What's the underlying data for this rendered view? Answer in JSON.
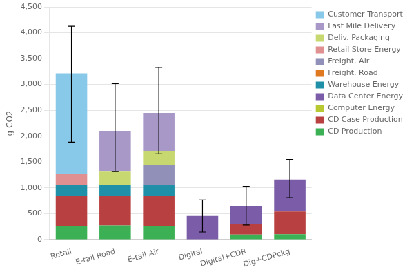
{
  "chart_data": {
    "type": "bar",
    "stacked": true,
    "categories": [
      "Retail",
      "E-tail Road",
      "E-tail Air",
      "Digital",
      "Digital+CDR",
      "Dig+CDPckg"
    ],
    "series": [
      {
        "name": "CD Production",
        "color": "#3cb054",
        "values": [
          250,
          270,
          250,
          0,
          95,
          100
        ]
      },
      {
        "name": "CD Case Production",
        "color": "#b94040",
        "values": [
          590,
          570,
          600,
          0,
          195,
          440
        ]
      },
      {
        "name": "Computer Energy",
        "color": "#b8c830",
        "values": [
          0,
          0,
          0,
          0,
          0,
          0
        ]
      },
      {
        "name": "Data Center Energy",
        "color": "#7b5ca8",
        "values": [
          0,
          0,
          0,
          455,
          360,
          620
        ]
      },
      {
        "name": "Warehouse Energy",
        "color": "#2090a8",
        "values": [
          215,
          210,
          215,
          0,
          0,
          0
        ]
      },
      {
        "name": "Freight, Road",
        "color": "#e07820",
        "values": [
          0,
          0,
          0,
          0,
          0,
          0
        ]
      },
      {
        "name": "Freight, Air",
        "color": "#9090b8",
        "values": [
          0,
          0,
          380,
          0,
          0,
          0
        ]
      },
      {
        "name": "Retail Store Energy",
        "color": "#e09090",
        "values": [
          210,
          0,
          0,
          0,
          0,
          0
        ]
      },
      {
        "name": "Deliv. Packaging",
        "color": "#c8d870",
        "values": [
          0,
          265,
          260,
          0,
          0,
          0
        ]
      },
      {
        "name": "Last Mile Delivery",
        "color": "#a898c8",
        "values": [
          0,
          780,
          745,
          0,
          0,
          0
        ]
      },
      {
        "name": "Customer Transport",
        "color": "#88c8e8",
        "values": [
          1950,
          0,
          0,
          0,
          0,
          0
        ]
      }
    ],
    "error_bars": [
      {
        "total": 3215,
        "yerr_low": 1330,
        "yerr_high": 910
      },
      {
        "total": 2095,
        "yerr_low": 780,
        "yerr_high": 920
      },
      {
        "total": 2450,
        "yerr_low": 790,
        "yerr_high": 880
      },
      {
        "total": 455,
        "yerr_low": 310,
        "yerr_high": 310
      },
      {
        "total": 650,
        "yerr_low": 370,
        "yerr_high": 380
      },
      {
        "total": 1160,
        "yerr_low": 350,
        "yerr_high": 390
      }
    ],
    "ylabel": "g CO2",
    "ylim": [
      0,
      4500
    ],
    "yticks": [
      0,
      500,
      1000,
      1500,
      2000,
      2500,
      3000,
      3500,
      4000,
      4500
    ],
    "grid": true,
    "legend": "right"
  }
}
